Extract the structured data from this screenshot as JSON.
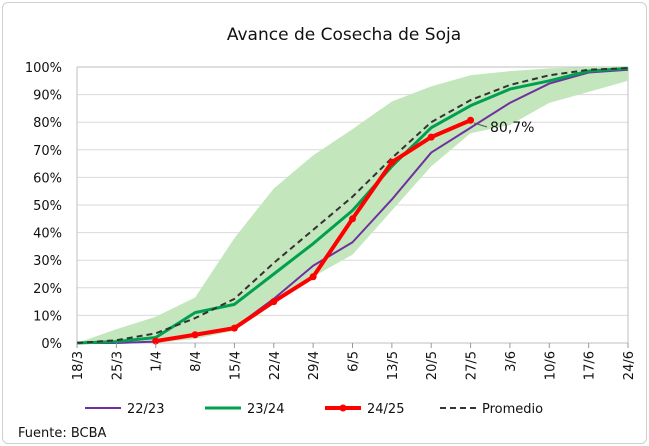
{
  "chart_data": {
    "type": "line",
    "title": "Avance de Cosecha de Soja",
    "categories": [
      "18/3",
      "25/3",
      "1/4",
      "8/4",
      "15/4",
      "22/4",
      "29/4",
      "6/5",
      "13/5",
      "20/5",
      "27/5",
      "3/6",
      "10/6",
      "17/6",
      "24/6"
    ],
    "ylim": [
      0,
      100
    ],
    "yticks": [
      "0%",
      "10%",
      "20%",
      "30%",
      "40%",
      "50%",
      "60%",
      "70%",
      "80%",
      "90%",
      "100%"
    ],
    "grid": true,
    "legend_position": "bottom",
    "band": {
      "color": "#c3e6bd",
      "upper": [
        0,
        5,
        9.5,
        16.5,
        38,
        56,
        68,
        77.5,
        87.5,
        93,
        97,
        98.5,
        99.5,
        100,
        100
      ],
      "lower": [
        0,
        0,
        0,
        1.5,
        4.5,
        14,
        24,
        32,
        48,
        64,
        76,
        79,
        87,
        91,
        95
      ]
    },
    "series": [
      {
        "name": "22/23",
        "color": "#7030a0",
        "values": [
          0,
          0,
          0.5,
          3,
          5.5,
          16,
          28,
          36.5,
          52,
          69,
          78,
          87,
          94,
          98,
          99
        ]
      },
      {
        "name": "23/24",
        "color": "#00a050",
        "values": [
          0,
          0.5,
          2,
          11,
          14,
          25,
          36,
          48,
          64,
          78,
          86,
          92,
          95,
          98.5,
          99.5
        ]
      },
      {
        "name": "24/25",
        "color": "#ff0000",
        "values": [
          null,
          null,
          0.7,
          3,
          5.4,
          15,
          24,
          45,
          65.5,
          74.6,
          80.7,
          null,
          null,
          null,
          null
        ]
      },
      {
        "name": "Promedio",
        "color": "#333333",
        "values": [
          0,
          1,
          3.5,
          9,
          16,
          29,
          41,
          53,
          67,
          80,
          88,
          93.5,
          97,
          99,
          99.6
        ]
      }
    ],
    "annotation": "80,7%",
    "source": "Fuente:  BCBA"
  }
}
